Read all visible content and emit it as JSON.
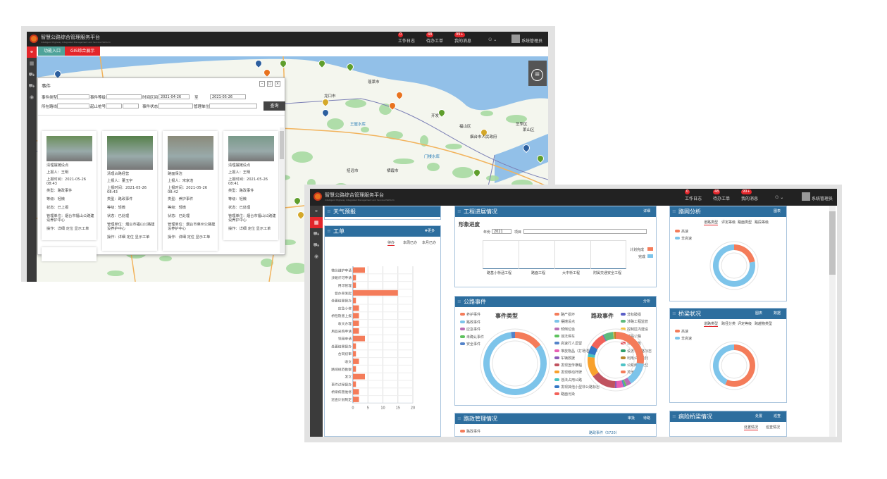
{
  "app": {
    "title": "智慧公路综合管理服务平台",
    "subtitle": "Intelligent Highway Integrated Management and Service Platform",
    "header": [
      {
        "label": "工作日志",
        "badge": "0",
        "icon": "log-icon"
      },
      {
        "label": "待办工单",
        "badge": "48",
        "icon": "edit-icon"
      },
      {
        "label": "我的消息",
        "badge": "99+",
        "icon": "message-icon"
      }
    ],
    "user": "系统管理员",
    "sidebar_icons": [
      "share-icon",
      "grid-icon",
      "road-icon",
      "road-icon",
      "eye-icon"
    ]
  },
  "screen1": {
    "tabs": [
      "功能入口",
      "GIS综合展示"
    ],
    "map_labels": [
      "蓬莱市",
      "龙口市",
      "开发",
      "福山区",
      "烟台市人民政府",
      "芝罘区",
      "莱山区",
      "王屋水库",
      "门楼水库",
      "栖霞市",
      "招远市",
      "龙门口水库",
      "高陵水库"
    ],
    "dialog": {
      "title": "事件",
      "fields": {
        "event_type": "事件类型",
        "event_level": "事件等级",
        "time_range": "时间区间",
        "start_date": "2021-04-26",
        "to": "至",
        "end_date": "2021-05-26",
        "route": "所在路线",
        "stake": "起止桩号",
        "status": "事件状态",
        "unit": "管理单位"
      },
      "search": "查询",
      "cards": [
        {
          "title": "清理摆摊设点",
          "reporter": "上报人：王明",
          "time": "上报时间：2021-05-26 08:43",
          "type": "类型：路政事件",
          "level": "等级：轻微",
          "status": "状态：已上报",
          "unit": "管理单位：烟台市福山公路建设养护中心",
          "ops": "操作：详细 定位 显示工单"
        },
        {
          "title": "清理占路经营",
          "reporter": "上报人：董玉宇",
          "time": "上报时间：2021-05-26 08:43",
          "type": "类型：路政事件",
          "level": "等级：轻微",
          "status": "状态：已处理",
          "unit": "管理单位：烟台市福山公路建设养护中心",
          "ops": "操作：详细 定位 显示工单"
        },
        {
          "title": "路面保洁",
          "reporter": "上报人：宋家浩",
          "time": "上报时间：2021-05-26 08:42",
          "type": "类型：养护事件",
          "level": "等级：轻微",
          "status": "状态：已处理",
          "unit": "管理单位：烟台市莱州公路建设养护中心",
          "ops": "操作：详细 定位 显示工单"
        },
        {
          "title": "清理摆摊设点",
          "reporter": "上报人：王明",
          "time": "上报时间：2021-05-26 08:41",
          "type": "类型：路政事件",
          "level": "等级：轻微",
          "status": "状态：已处理",
          "unit": "管理单位：烟台市福山公路建设养护中心",
          "ops": "操作：详细 定位 显示工单"
        }
      ]
    }
  },
  "screen2": {
    "weather": {
      "title": "天气预报"
    },
    "workorder": {
      "title": "工单",
      "more": "✚更多",
      "tabs": [
        "待办",
        "本周已办",
        "本月已办"
      ],
      "chart_data": {
        "type": "bar",
        "orientation": "horizontal",
        "categories": [
          "微信维护申请",
          "涉路许可申请",
          "用印管理",
          "督办单发起",
          "处置结果督办",
          "应急小修",
          "桥检隐患上报",
          "收文办理",
          "用品采购申请",
          "领用申请",
          "处置结果督办",
          "合同初审",
          "收文",
          "路域规范勘察",
          "发文",
          "事件过程督办",
          "桥梁病害维修",
          "巡查计划制定"
        ],
        "values": [
          4,
          1,
          1,
          15,
          1,
          2,
          2,
          2,
          2,
          4,
          1,
          1,
          2,
          1,
          4,
          1,
          2,
          2
        ],
        "xlim": [
          0,
          20
        ],
        "xticks": [
          0,
          5,
          10,
          15,
          20
        ],
        "color": "#f47c5a"
      }
    },
    "project": {
      "title": "工程进展情况",
      "action": "详细",
      "subtitle": "形象进度",
      "year_label": "年份",
      "year": "2021",
      "item_label": "项目",
      "categories": [
        "路基小桥涵工程",
        "路面工程",
        "大中桥工程",
        "附属交通安全工程"
      ],
      "legend": [
        {
          "label": "计划完成",
          "color": "#f47c5a"
        },
        {
          "label": "完成",
          "color": "#7dc4ea"
        }
      ]
    },
    "events": {
      "title": "公路事件",
      "action": "分析",
      "chart_data": [
        {
          "type": "pie",
          "title": "事件类型",
          "series": [
            {
              "name": "养护事件",
              "value": 15,
              "color": "#f47c5a"
            },
            {
              "name": "路政事件",
              "value": 83,
              "color": "#7dc4ea"
            },
            {
              "name": "应急事件",
              "value": 0,
              "color": "#b86fb5"
            },
            {
              "name": "未确认事件",
              "value": 0,
              "color": "#5ec25e"
            },
            {
              "name": "安全事件",
              "value": 2,
              "color": "#5483c9"
            }
          ]
        },
        {
          "type": "pie",
          "title": "路政事件",
          "series": [
            {
              "name": "路产损坏",
              "value": 28,
              "color": "#f47c5a"
            },
            {
              "name": "摆摊设点",
              "value": 14,
              "color": "#7dc4ea"
            },
            {
              "name": "倾倒垃圾",
              "value": 3,
              "color": "#b86fb5"
            },
            {
              "name": "违法停车",
              "value": 1,
              "color": "#5ec25e"
            },
            {
              "name": "高速行人逗留",
              "value": 1,
              "color": "#5483c9"
            },
            {
              "name": "堆放物品（打场晒粮等）",
              "value": 4,
              "color": "#e85fb3"
            },
            {
              "name": "车辆救援",
              "value": 1,
              "color": "#8a5ab8"
            },
            {
              "name": "发现宣传横幅",
              "value": 15,
              "color": "#c0525f"
            },
            {
              "name": "发现移动杆牌",
              "value": 12,
              "color": "#f8a12c"
            },
            {
              "name": "违法占用公路",
              "value": 2,
              "color": "#45c3c0"
            },
            {
              "name": "发现其他小型非公路标志",
              "value": 5,
              "color": "#3477c5"
            },
            {
              "name": "路面污染",
              "value": 9,
              "color": "#f2625a"
            },
            {
              "name": "非标破损",
              "value": 0.5,
              "color": "#5b5fc7"
            },
            {
              "name": "涉路工程监管",
              "value": 6,
              "color": "#5fba7d"
            },
            {
              "name": "控制区内建设",
              "value": 0.5,
              "color": "#f5c342"
            },
            {
              "name": "挖掘公路",
              "value": 0,
              "color": "#6f8fd6"
            },
            {
              "name": "违章建筑",
              "value": 0,
              "color": "#e84f5b"
            },
            {
              "name": "设置非公路标志",
              "value": 0,
              "color": "#2e9e6a"
            },
            {
              "name": "利用公路设施",
              "value": 1,
              "color": "#b5862c"
            },
            {
              "name": "公路两侧大型",
              "value": 0,
              "color": "#4fc3c7"
            },
            {
              "name": "其他",
              "value": 0,
              "color": "#f47c5a"
            }
          ]
        }
      ]
    },
    "admin": {
      "title": "路政管理情况",
      "actions": [
        "审批",
        "待路"
      ],
      "legend": "路政事件",
      "fieldset": "路政事件（5720）"
    },
    "network": {
      "title": "路网分析",
      "action": "图表",
      "tabs": [
        "道路类型",
        "评定等级",
        "路面类型",
        "路段等级"
      ],
      "chart_data": {
        "type": "pie",
        "series": [
          {
            "name": "高速",
            "value": 22,
            "color": "#f47c5a"
          },
          {
            "name": "非高速",
            "value": 78,
            "color": "#7dc4ea"
          }
        ]
      }
    },
    "bridge": {
      "title": "桥梁状况",
      "actions": [
        "图表",
        "数据"
      ],
      "tabs": [
        "道路类型",
        "跨径分类",
        "评定等级",
        "跨越物类型"
      ],
      "chart_data": {
        "type": "pie",
        "series": [
          {
            "name": "高速",
            "value": 57,
            "color": "#f47c5a"
          },
          {
            "name": "非高速",
            "value": 43,
            "color": "#7dc4ea"
          }
        ]
      }
    },
    "danger": {
      "title": "病险桥梁情况",
      "actions": [
        "处置",
        "巡查"
      ],
      "tabs": [
        "处置情况",
        "巡查情况"
      ]
    }
  }
}
